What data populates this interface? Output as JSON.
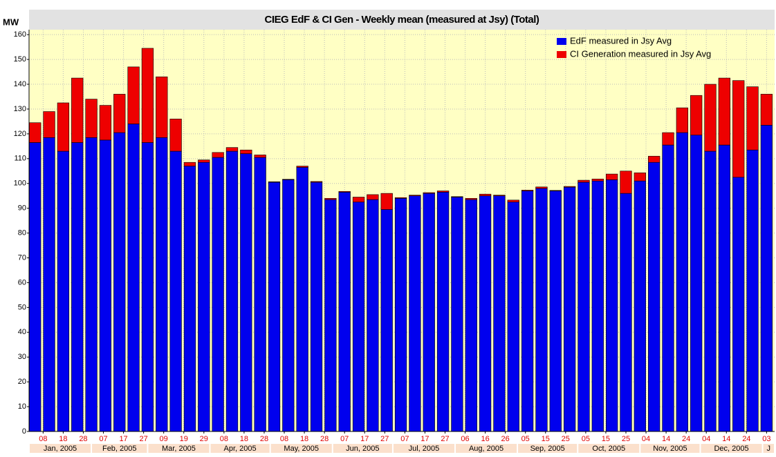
{
  "chart_data": {
    "type": "stacked_bar",
    "title": "CIEG EdF & CI Gen - Weekly mean (measured at Jsy) (Total)",
    "y_label": "MW",
    "x": [
      "2005-01-04",
      "2005-01-11",
      "2005-01-18",
      "2005-01-25",
      "2005-02-01",
      "2005-02-08",
      "2005-02-15",
      "2005-02-22",
      "2005-03-01",
      "2005-03-08",
      "2005-03-15",
      "2005-03-22",
      "2005-03-29",
      "2005-04-05",
      "2005-04-12",
      "2005-04-19",
      "2005-04-26",
      "2005-05-03",
      "2005-05-10",
      "2005-05-17",
      "2005-05-24",
      "2005-05-31",
      "2005-06-07",
      "2005-06-14",
      "2005-06-21",
      "2005-06-28",
      "2005-07-05",
      "2005-07-12",
      "2005-07-19",
      "2005-07-26",
      "2005-08-02",
      "2005-08-09",
      "2005-08-16",
      "2005-08-23",
      "2005-08-30",
      "2005-09-06",
      "2005-09-13",
      "2005-09-20",
      "2005-09-27",
      "2005-10-04",
      "2005-10-11",
      "2005-10-18",
      "2005-10-25",
      "2005-11-01",
      "2005-11-08",
      "2005-11-15",
      "2005-11-22",
      "2005-11-29",
      "2005-12-06",
      "2005-12-13",
      "2005-12-20",
      "2005-12-27",
      "2006-01-03"
    ],
    "series": [
      {
        "name": "EdF measured in Jsy Avg",
        "color": "#0000ee",
        "values": [
          116.5,
          118.5,
          113,
          116.5,
          118.5,
          117.5,
          120.5,
          124,
          116.5,
          118.5,
          113,
          107,
          108.5,
          110.5,
          113,
          112,
          110.5,
          100.5,
          101.5,
          106.5,
          100.5,
          93.5,
          96.5,
          92.5,
          93.5,
          89.5,
          94,
          95,
          96,
          96.5,
          94.5,
          93.5,
          95,
          95,
          92.5,
          97,
          98,
          97,
          98.5,
          100.5,
          101,
          101.5,
          96,
          101,
          108.5,
          115.5,
          120.5,
          119.5,
          113,
          115.5,
          102.5,
          113.5,
          123.5
        ]
      },
      {
        "name": "CI Generation measured in Jsy Avg",
        "color": "#ee0000",
        "values": [
          8,
          10.5,
          19.5,
          26,
          15.5,
          14,
          15.5,
          23,
          38,
          24.5,
          13,
          1.5,
          1,
          2,
          1.5,
          1.5,
          1,
          0.2,
          0.2,
          0.5,
          0.3,
          0.5,
          0.3,
          2,
          2,
          6.5,
          0.3,
          0.3,
          0.3,
          0.5,
          0.2,
          0.5,
          0.7,
          0.3,
          0.8,
          0.3,
          0.6,
          0.2,
          0.3,
          0.8,
          0.8,
          2.3,
          9,
          3.3,
          2.5,
          5,
          10,
          16,
          27,
          27,
          39,
          25.5,
          12.5
        ]
      }
    ],
    "xlim": [
      "2005-01-01",
      "2006-01-07"
    ],
    "xticks": [
      {
        "value": "2005-01-08",
        "label": "08"
      },
      {
        "value": "2005-01-18",
        "label": "18"
      },
      {
        "value": "2005-01-28",
        "label": "28"
      },
      {
        "value": "2005-02-07",
        "label": "07"
      },
      {
        "value": "2005-02-17",
        "label": "17"
      },
      {
        "value": "2005-02-27",
        "label": "27"
      },
      {
        "value": "2005-03-09",
        "label": "09"
      },
      {
        "value": "2005-03-19",
        "label": "19"
      },
      {
        "value": "2005-03-29",
        "label": "29"
      },
      {
        "value": "2005-04-08",
        "label": "08"
      },
      {
        "value": "2005-04-18",
        "label": "18"
      },
      {
        "value": "2005-04-28",
        "label": "28"
      },
      {
        "value": "2005-05-08",
        "label": "08"
      },
      {
        "value": "2005-05-18",
        "label": "18"
      },
      {
        "value": "2005-05-28",
        "label": "28"
      },
      {
        "value": "2005-06-07",
        "label": "07"
      },
      {
        "value": "2005-06-17",
        "label": "17"
      },
      {
        "value": "2005-06-27",
        "label": "27"
      },
      {
        "value": "2005-07-07",
        "label": "07"
      },
      {
        "value": "2005-07-17",
        "label": "17"
      },
      {
        "value": "2005-07-27",
        "label": "27"
      },
      {
        "value": "2005-08-06",
        "label": "06"
      },
      {
        "value": "2005-08-16",
        "label": "16"
      },
      {
        "value": "2005-08-26",
        "label": "26"
      },
      {
        "value": "2005-09-05",
        "label": "05"
      },
      {
        "value": "2005-09-15",
        "label": "15"
      },
      {
        "value": "2005-09-25",
        "label": "25"
      },
      {
        "value": "2005-10-05",
        "label": "05"
      },
      {
        "value": "2005-10-15",
        "label": "15"
      },
      {
        "value": "2005-10-25",
        "label": "25"
      },
      {
        "value": "2005-11-04",
        "label": "04"
      },
      {
        "value": "2005-11-14",
        "label": "14"
      },
      {
        "value": "2005-11-24",
        "label": "24"
      },
      {
        "value": "2005-12-04",
        "label": "04"
      },
      {
        "value": "2005-12-14",
        "label": "14"
      },
      {
        "value": "2005-12-24",
        "label": "24"
      },
      {
        "value": "2006-01-03",
        "label": "03"
      }
    ],
    "month_labels": [
      {
        "value": "2005-01",
        "label": "Jan, 2005"
      },
      {
        "value": "2005-02",
        "label": "Feb, 2005"
      },
      {
        "value": "2005-03",
        "label": "Mar, 2005"
      },
      {
        "value": "2005-04",
        "label": "Apr, 2005"
      },
      {
        "value": "2005-05",
        "label": "May, 2005"
      },
      {
        "value": "2005-06",
        "label": "Jun, 2005"
      },
      {
        "value": "2005-07",
        "label": "Jul, 2005"
      },
      {
        "value": "2005-08",
        "label": "Aug, 2005"
      },
      {
        "value": "2005-09",
        "label": "Sep, 2005"
      },
      {
        "value": "2005-10",
        "label": "Oct, 2005"
      },
      {
        "value": "2005-11",
        "label": "Nov, 2005"
      },
      {
        "value": "2005-12",
        "label": "Dec, 2005"
      },
      {
        "value": "2006-01",
        "label": "J"
      }
    ],
    "ylim": [
      0,
      162
    ],
    "yticks": [
      0,
      10,
      20,
      30,
      40,
      50,
      60,
      70,
      80,
      90,
      100,
      110,
      120,
      130,
      140,
      150,
      160
    ],
    "grid": true,
    "legend": "top-right"
  }
}
